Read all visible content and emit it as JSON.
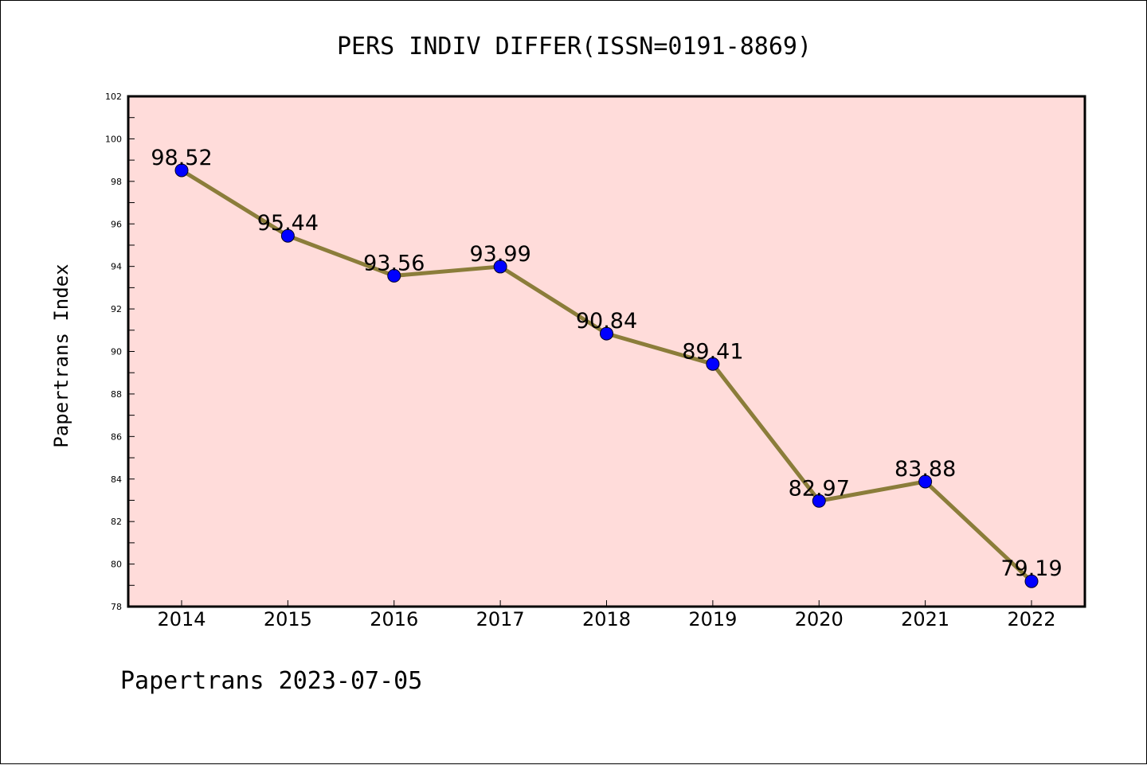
{
  "chart_data": {
    "type": "line",
    "title": "PERS INDIV DIFFER(ISSN=0191-8869)",
    "xlabel": "",
    "ylabel": "Papertrans Index",
    "footer": "Papertrans 2023-07-05",
    "categories": [
      "2014",
      "2015",
      "2016",
      "2017",
      "2018",
      "2019",
      "2020",
      "2021",
      "2022"
    ],
    "series": [
      {
        "values": [
          98.52,
          95.44,
          93.56,
          93.99,
          90.84,
          89.41,
          82.97,
          83.88,
          79.19
        ],
        "labels": [
          "98.52",
          "95.44",
          "93.56",
          "93.99",
          "90.84",
          "89.41",
          "82.97",
          "83.88",
          "79.19"
        ],
        "line_color": "#8b7d3a",
        "marker_color": "#0000ff"
      }
    ],
    "ylim": [
      78,
      102
    ],
    "y_major_ticks": [
      "78",
      "80",
      "82",
      "84",
      "86",
      "88",
      "90",
      "92",
      "94",
      "96",
      "98",
      "100",
      "102"
    ],
    "grid": false,
    "plot_background": "#ffdcda"
  }
}
